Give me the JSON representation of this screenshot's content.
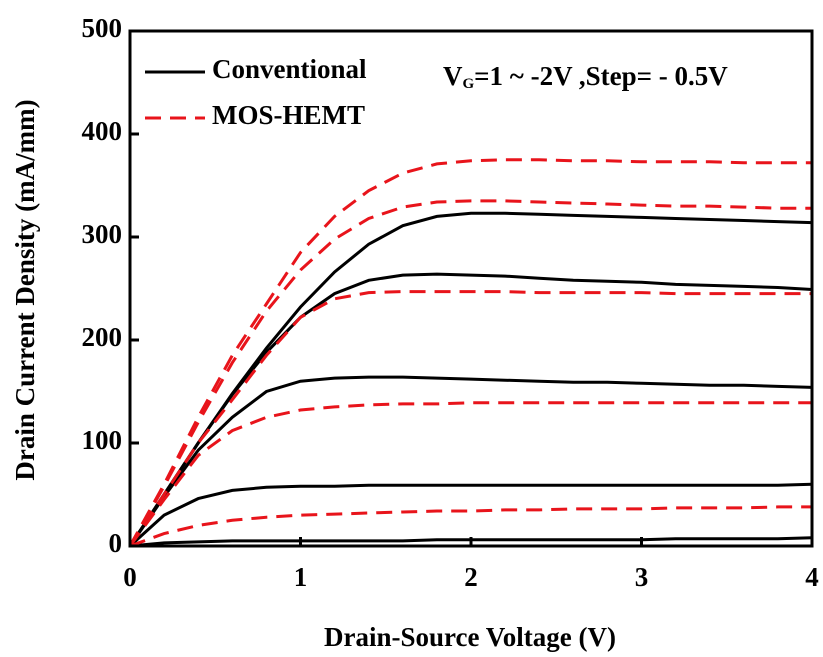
{
  "chart_data": {
    "type": "line",
    "x_label": "Drain-Source Voltage (V)",
    "y_label": "Drain Current Density (mA/mm)",
    "annotation": {
      "main": "V",
      "sub": "G",
      "rest": "=1 ~ -2V ,Step= - 0.5V"
    },
    "xlim": [
      0,
      4
    ],
    "xticks": [
      0,
      1,
      2,
      3,
      4
    ],
    "ylim": [
      0,
      500
    ],
    "yticks": [
      0,
      100,
      200,
      300,
      400,
      500
    ],
    "x": [
      0,
      0.2,
      0.4,
      0.6,
      0.8,
      1.0,
      1.2,
      1.4,
      1.6,
      1.8,
      2.0,
      2.2,
      2.4,
      2.6,
      2.8,
      3.0,
      3.2,
      3.4,
      3.6,
      3.8,
      4.0
    ],
    "legend": "upper left",
    "series": [
      {
        "name": "Conventional",
        "color": "#000000",
        "dashed": false,
        "curves": [
          {
            "values": [
              0,
              50,
              100,
              148,
              192,
              232,
              266,
              293,
              311,
              320,
              323,
              323,
              322,
              321,
              320,
              319,
              318,
              317,
              316,
              315,
              314
            ]
          },
          {
            "values": [
              0,
              50,
              100,
              147,
              188,
              222,
              245,
              258,
              263,
              264,
              263,
              262,
              260,
              258,
              257,
              256,
              254,
              253,
              252,
              251,
              249
            ]
          },
          {
            "values": [
              0,
              48,
              93,
              125,
              150,
              160,
              163,
              164,
              164,
              163,
              162,
              161,
              160,
              159,
              159,
              158,
              157,
              156,
              156,
              155,
              154
            ]
          },
          {
            "values": [
              0,
              30,
              46,
              54,
              57,
              58,
              58,
              59,
              59,
              59,
              59,
              59,
              59,
              59,
              59,
              59,
              59,
              59,
              59,
              59,
              60
            ]
          },
          {
            "values": [
              0,
              3,
              4,
              5,
              5,
              5,
              5,
              5,
              5,
              6,
              6,
              6,
              6,
              6,
              6,
              6,
              7,
              7,
              7,
              7,
              8
            ]
          }
        ]
      },
      {
        "name": "MOS-HEMT",
        "color": "#e8141b",
        "dashed": true,
        "curves": [
          {
            "values": [
              0,
              60,
              125,
              185,
              235,
              285,
              320,
              345,
              362,
              371,
              374,
              375,
              375,
              374,
              374,
              373,
              373,
              373,
              372,
              372,
              372
            ]
          },
          {
            "values": [
              0,
              58,
              120,
              178,
              228,
              268,
              298,
              318,
              329,
              334,
              335,
              335,
              334,
              333,
              332,
              331,
              330,
              330,
              329,
              328,
              328
            ]
          },
          {
            "values": [
              0,
              50,
              100,
              142,
              185,
              222,
              240,
              246,
              247,
              247,
              247,
              247,
              246,
              246,
              246,
              246,
              245,
              245,
              245,
              245,
              245
            ]
          },
          {
            "values": [
              0,
              45,
              88,
              112,
              125,
              132,
              135,
              137,
              138,
              138,
              139,
              139,
              139,
              139,
              139,
              139,
              139,
              139,
              139,
              139,
              139
            ]
          },
          {
            "values": [
              0,
              12,
              20,
              25,
              28,
              30,
              31,
              32,
              33,
              34,
              34,
              35,
              35,
              36,
              36,
              36,
              37,
              37,
              37,
              38,
              38
            ]
          }
        ]
      }
    ]
  }
}
